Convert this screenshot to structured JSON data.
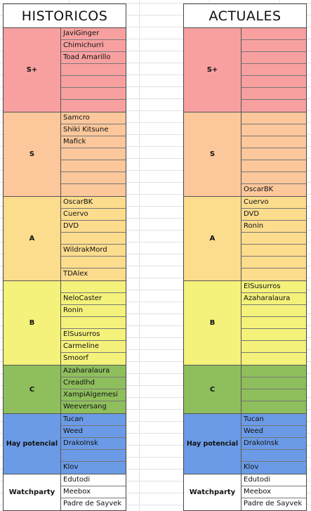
{
  "historicos": {
    "title": "HISTORICOS",
    "tiers": [
      {
        "label": "S+",
        "key": "splus",
        "cells": [
          "JaviGinger",
          "Chimichurri",
          "Toad Amarillo",
          "",
          "",
          "",
          ""
        ]
      },
      {
        "label": "S",
        "key": "s",
        "cells": [
          "Samcro",
          "Shiki Kitsune",
          "Mafick",
          "",
          "",
          "",
          ""
        ]
      },
      {
        "label": "A",
        "key": "a",
        "cells": [
          "OscarBK",
          "Cuervo",
          "DVD",
          "",
          "WildrakMord",
          "",
          "TDAlex"
        ]
      },
      {
        "label": "B",
        "key": "b",
        "cells": [
          "",
          "NeloCaster",
          "Ronin",
          "",
          "ElSusurros",
          "Carmeline",
          "Smoorf"
        ]
      },
      {
        "label": "C",
        "key": "c",
        "cells": [
          "Azaharalaura",
          "Creadlhd",
          "XampiAlgemesi",
          "Weeversang"
        ]
      },
      {
        "label": "Hay potencial",
        "key": "hp",
        "cells": [
          "Tucan",
          "Weed",
          "DrakoInsk",
          "",
          "Klov"
        ]
      },
      {
        "label": "Watchparty",
        "key": "wp",
        "cells": [
          "Edutodi",
          "Meebox",
          "Padre de Sayvek"
        ]
      }
    ]
  },
  "actuales": {
    "title": "ACTUALES",
    "tiers": [
      {
        "label": "S+",
        "key": "splus",
        "cells": [
          "",
          "",
          "",
          "",
          "",
          "",
          ""
        ]
      },
      {
        "label": "S",
        "key": "s",
        "cells": [
          "",
          "",
          "",
          "",
          "",
          "",
          "OscarBK"
        ]
      },
      {
        "label": "A",
        "key": "a",
        "cells": [
          "Cuervo",
          "DVD",
          "Ronin",
          "",
          "",
          "",
          ""
        ]
      },
      {
        "label": "B",
        "key": "b",
        "cells": [
          "ElSusurros",
          "Azaharalaura",
          "",
          "",
          "",
          "",
          ""
        ]
      },
      {
        "label": "C",
        "key": "c",
        "cells": [
          "",
          "",
          "",
          ""
        ]
      },
      {
        "label": "Hay potencial",
        "key": "hp",
        "cells": [
          "Tucan",
          "Weed",
          "DrakoInsk",
          "",
          "Klov"
        ]
      },
      {
        "label": "Watchparty",
        "key": "wp",
        "cells": [
          "Edutodi",
          "Meebox",
          "Padre de Sayvek"
        ]
      }
    ]
  }
}
